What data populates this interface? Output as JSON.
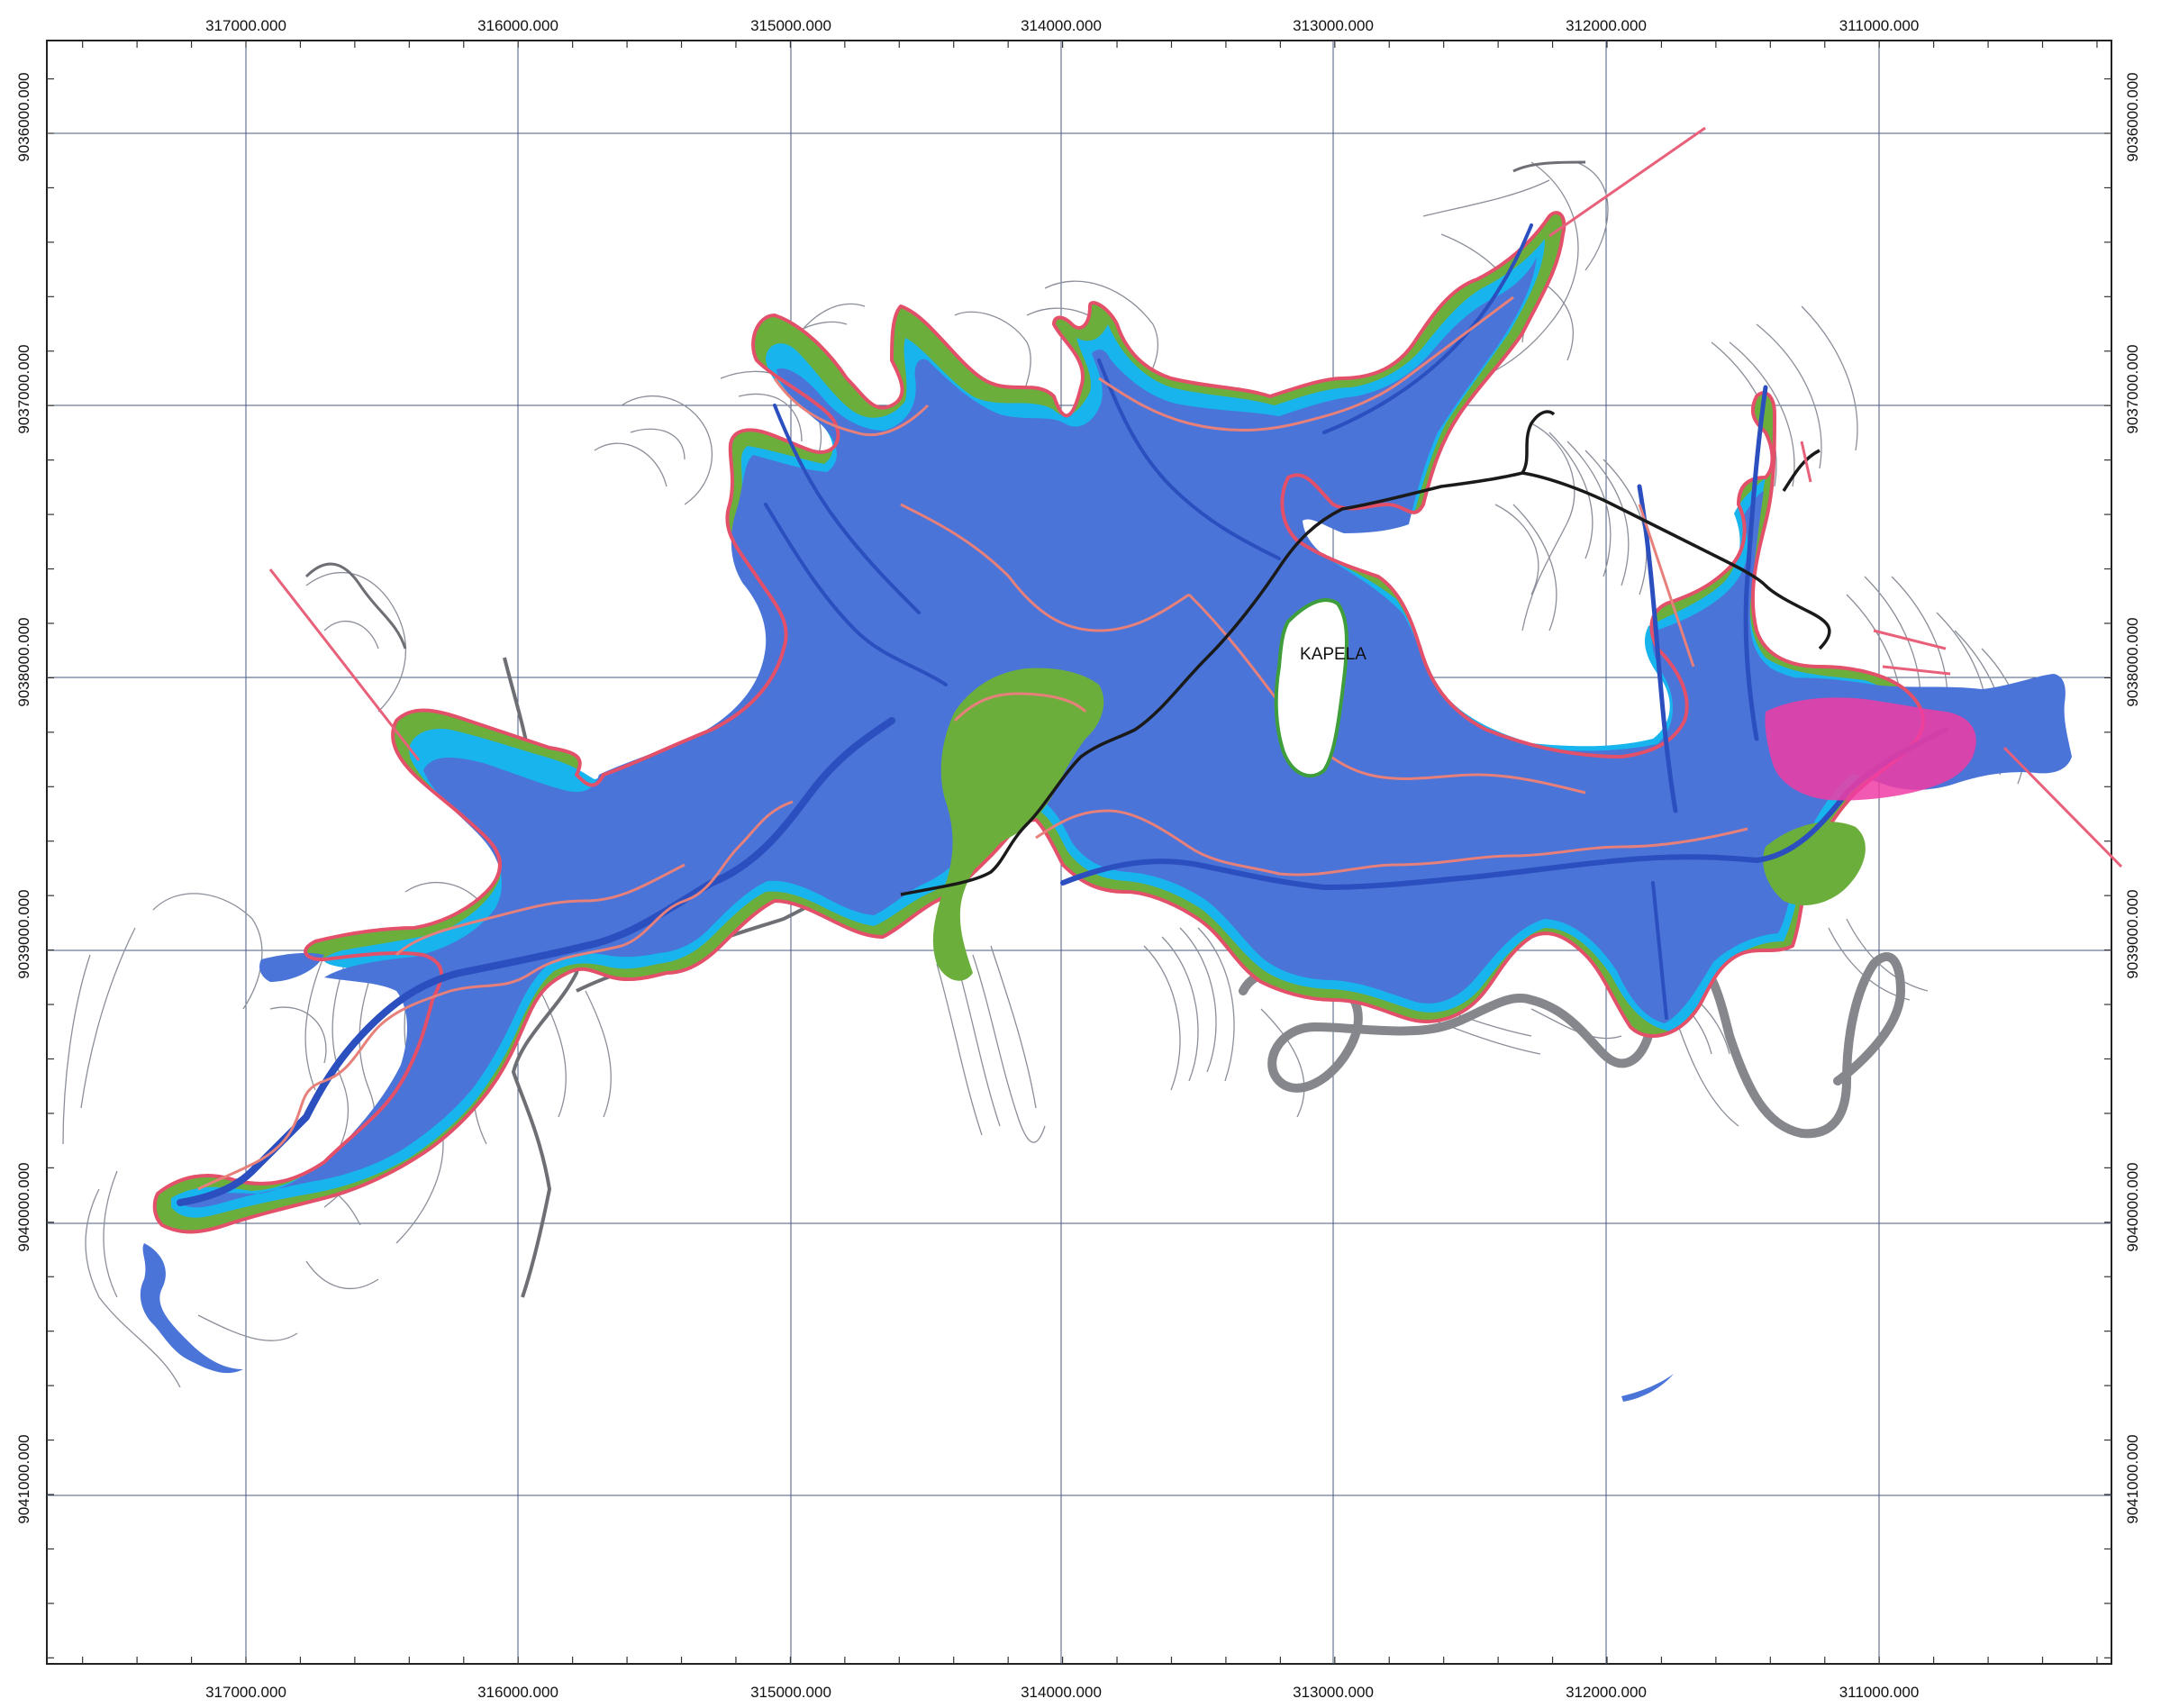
{
  "map": {
    "place_label": "KAPELA",
    "easting_labels": [
      "317000.000",
      "316000.000",
      "315000.000",
      "314000.000",
      "313000.000",
      "312000.000",
      "311000.000"
    ],
    "northing_labels": [
      "9036000.000",
      "9037000.000",
      "9038000.000",
      "9039000.000",
      "9040000.000",
      "9041000.000"
    ],
    "colors": {
      "reservoir": "#4a74d8",
      "shallow_water": "#18b4ee",
      "shore_zone": "#6cae3c",
      "outline": "#e2506a",
      "dam_site": "#f03ca4"
    }
  }
}
